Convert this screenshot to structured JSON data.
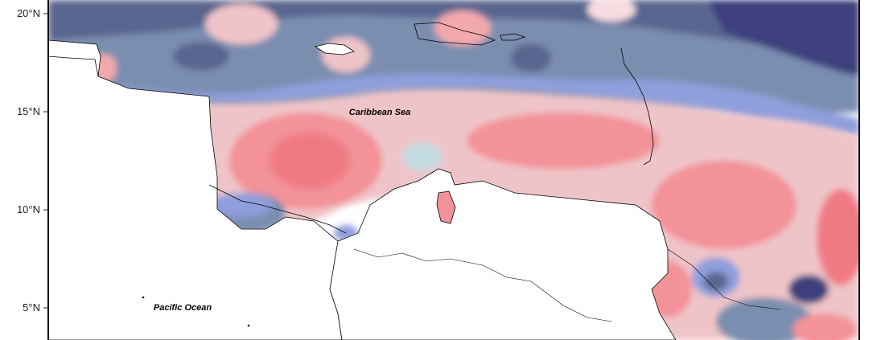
{
  "map": {
    "latitude_labels": [
      "20°N",
      "15°N",
      "10°N",
      "5°N"
    ],
    "place_labels": {
      "caribbean_sea": "Caribbean Sea",
      "pacific_ocean": "Pacific Ocean"
    },
    "colors": {
      "land": "#ffffff",
      "deep_blue": "#3d3f7c",
      "dark_slate": "#59668f",
      "slate_blue": "#7a8eb0",
      "periwinkle": "#8f9fdc",
      "light_teal": "#c4dbe2",
      "pale_pink": "#f7dde2",
      "light_pink": "#efc4c8",
      "salmon": "#f2a9ad",
      "coral": "#f39298",
      "deep_coral": "#f07a84",
      "coastline": "#000000"
    }
  }
}
